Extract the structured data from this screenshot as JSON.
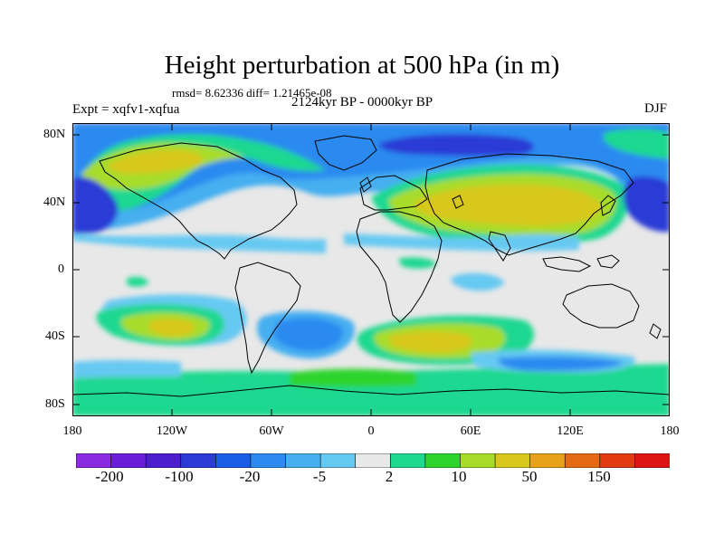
{
  "map": {
    "title": "Height perturbation at 500 hPa (in m)",
    "stats": "rmsd= 8.62336 diff= 1.21465e-08",
    "experiment": "Expt = xqfv1-xqfua",
    "period": "2124kyr BP - 0000kyr BP",
    "season": "DJF",
    "lat_ticks": [
      "80N",
      "40N",
      "0",
      "40S",
      "80S"
    ],
    "lon_ticks": [
      "180",
      "120W",
      "60W",
      "0",
      "60E",
      "120E",
      "180"
    ],
    "projection": "cylindrical equidistant",
    "coastlines": true
  },
  "colorbar": {
    "colors": [
      "#8a2be2",
      "#6a1ed8",
      "#4b1fce",
      "#2c3bd6",
      "#1a5ee6",
      "#2c8af0",
      "#45aff0",
      "#66c9f2",
      "#e8e8e8",
      "#1fd890",
      "#2ed42e",
      "#a8dc2a",
      "#d8c81e",
      "#e8a21a",
      "#e46a14",
      "#e23b14",
      "#dc1414"
    ],
    "labels": [
      "-200",
      "-100",
      "-20",
      "-5",
      "2",
      "10",
      "50",
      "150"
    ]
  }
}
